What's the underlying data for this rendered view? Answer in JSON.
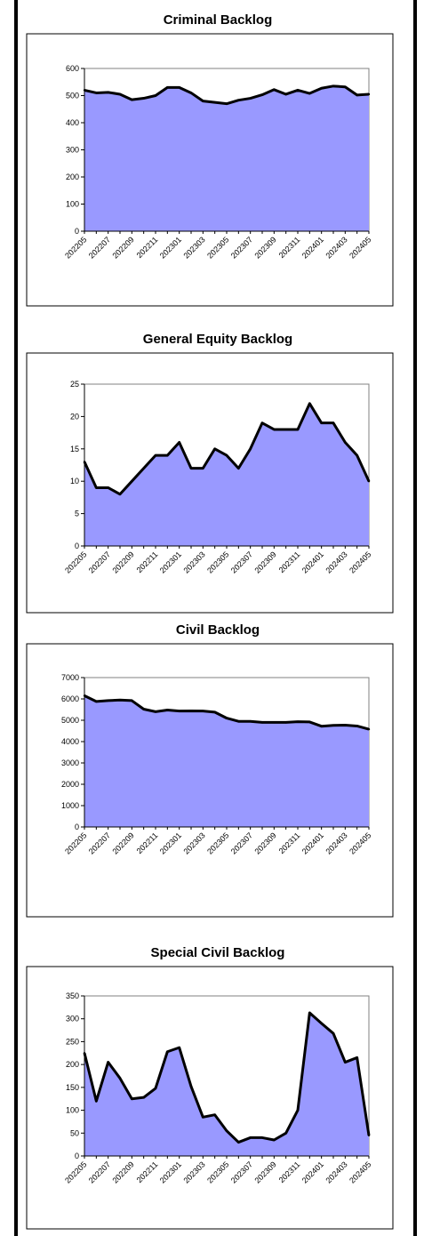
{
  "chart_data": [
    {
      "type": "area",
      "title": "Criminal Backlog",
      "xlabel": "",
      "ylabel": "",
      "ylim": [
        0,
        600
      ],
      "yticks": [
        0,
        100,
        200,
        300,
        400,
        500,
        600
      ],
      "grid": false,
      "x": [
        "202205",
        "202206",
        "202207",
        "202208",
        "202209",
        "202210",
        "202211",
        "202212",
        "202301",
        "202302",
        "202303",
        "202304",
        "202305",
        "202306",
        "202307",
        "202308",
        "202309",
        "202310",
        "202311",
        "202312",
        "202401",
        "202402",
        "202403",
        "202404",
        "202405"
      ],
      "x_tick_labels": [
        "202205",
        "202207",
        "202209",
        "202211",
        "202301",
        "202303",
        "202305",
        "202307",
        "202309",
        "202311",
        "202401",
        "202403",
        "202405"
      ],
      "values": [
        520,
        510,
        512,
        505,
        485,
        490,
        500,
        530,
        530,
        510,
        480,
        475,
        470,
        483,
        490,
        503,
        522,
        505,
        520,
        508,
        527,
        535,
        532,
        502,
        505
      ]
    },
    {
      "type": "area",
      "title": "General Equity Backlog",
      "xlabel": "",
      "ylabel": "",
      "ylim": [
        0,
        25
      ],
      "yticks": [
        0,
        5,
        10,
        15,
        20,
        25
      ],
      "grid": false,
      "x": [
        "202205",
        "202206",
        "202207",
        "202208",
        "202209",
        "202210",
        "202211",
        "202212",
        "202301",
        "202302",
        "202303",
        "202304",
        "202305",
        "202306",
        "202307",
        "202308",
        "202309",
        "202310",
        "202311",
        "202312",
        "202401",
        "202402",
        "202403",
        "202404",
        "202405"
      ],
      "x_tick_labels": [
        "202205",
        "202207",
        "202209",
        "202211",
        "202301",
        "202303",
        "202305",
        "202307",
        "202309",
        "202311",
        "202401",
        "202403",
        "202405"
      ],
      "values": [
        13,
        9,
        9,
        8,
        10,
        12,
        14,
        14,
        16,
        12,
        12,
        15,
        14,
        12,
        15,
        19,
        18,
        18,
        18,
        22,
        19,
        19,
        16,
        14,
        10
      ]
    },
    {
      "type": "area",
      "title": "Civil Backlog",
      "xlabel": "",
      "ylabel": "",
      "ylim": [
        0,
        7000
      ],
      "yticks": [
        0,
        1000,
        2000,
        3000,
        4000,
        5000,
        6000,
        7000
      ],
      "grid": false,
      "x": [
        "202205",
        "202206",
        "202207",
        "202208",
        "202209",
        "202210",
        "202211",
        "202212",
        "202301",
        "202302",
        "202303",
        "202304",
        "202305",
        "202306",
        "202307",
        "202308",
        "202309",
        "202310",
        "202311",
        "202312",
        "202401",
        "202402",
        "202403",
        "202404",
        "202405"
      ],
      "x_tick_labels": [
        "202205",
        "202207",
        "202209",
        "202211",
        "202301",
        "202303",
        "202305",
        "202307",
        "202309",
        "202311",
        "202401",
        "202403",
        "202405"
      ],
      "values": [
        6150,
        5880,
        5920,
        5950,
        5920,
        5520,
        5400,
        5480,
        5430,
        5440,
        5430,
        5380,
        5100,
        4950,
        4950,
        4900,
        4900,
        4900,
        4930,
        4920,
        4720,
        4760,
        4770,
        4730,
        4580
      ]
    },
    {
      "type": "area",
      "title": "Special Civil Backlog",
      "xlabel": "",
      "ylabel": "",
      "ylim": [
        0,
        350
      ],
      "yticks": [
        0,
        50,
        100,
        150,
        200,
        250,
        300,
        350
      ],
      "grid": false,
      "x": [
        "202205",
        "202206",
        "202207",
        "202208",
        "202209",
        "202210",
        "202211",
        "202212",
        "202301",
        "202302",
        "202303",
        "202304",
        "202305",
        "202306",
        "202307",
        "202308",
        "202309",
        "202310",
        "202311",
        "202312",
        "202401",
        "202402",
        "202403",
        "202404",
        "202405"
      ],
      "x_tick_labels": [
        "202205",
        "202207",
        "202209",
        "202211",
        "202301",
        "202303",
        "202305",
        "202307",
        "202309",
        "202311",
        "202401",
        "202403",
        "202405"
      ],
      "values": [
        225,
        120,
        205,
        170,
        125,
        128,
        148,
        228,
        237,
        152,
        85,
        90,
        55,
        30,
        40,
        40,
        35,
        50,
        100,
        313,
        290,
        268,
        205,
        215,
        45
      ]
    }
  ],
  "colors": {
    "area_fill": "#9999ff",
    "line": "#000000",
    "axis": "#808080"
  }
}
